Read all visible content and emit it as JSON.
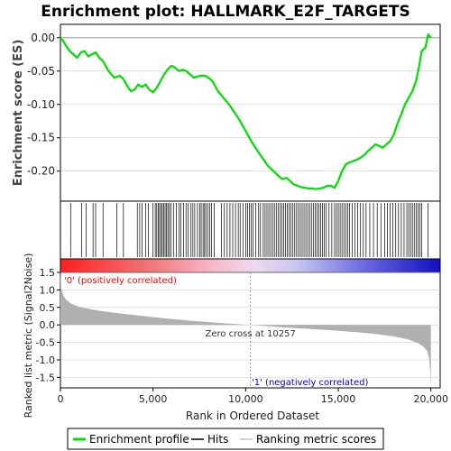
{
  "chart_data": {
    "type": "line",
    "title": "Enrichment plot: HALLMARK_E2F_TARGETS",
    "colors": {
      "es_line": "#00dd00",
      "hits": "#000000",
      "metric_fill": "#b0b0b0",
      "pos_label": "#ff0000",
      "neg_label": "#0000dd",
      "axis": "#000000",
      "grid": "#cccccc"
    },
    "es_panel": {
      "ylabel": "Enrichment score (ES)",
      "ylim": [
        -0.245,
        0.02
      ],
      "yticks": [
        {
          "v": 0.0,
          "label": "0.00"
        },
        {
          "v": -0.05,
          "label": "-0.05"
        },
        {
          "v": -0.1,
          "label": "-0.10"
        },
        {
          "v": -0.15,
          "label": "-0.15"
        },
        {
          "v": -0.2,
          "label": "-0.20"
        }
      ],
      "series": [
        {
          "name": "Enrichment profile",
          "x": [
            0,
            150,
            300,
            500,
            700,
            900,
            1100,
            1300,
            1500,
            1700,
            1900,
            2100,
            2300,
            2600,
            2900,
            3200,
            3400,
            3600,
            3800,
            4000,
            4200,
            4400,
            4600,
            4800,
            5000,
            5200,
            5400,
            5600,
            5800,
            6000,
            6200,
            6400,
            6600,
            6800,
            7000,
            7200,
            7400,
            7600,
            7800,
            8000,
            8200,
            8500,
            8800,
            9100,
            9400,
            9700,
            10000,
            10300,
            10600,
            10900,
            11200,
            11500,
            11800,
            12000,
            12200,
            12400,
            12600,
            12800,
            13000,
            13200,
            13400,
            13600,
            13800,
            14000,
            14200,
            14400,
            14600,
            14800,
            15000,
            15200,
            15400,
            15600,
            15800,
            16000,
            16200,
            16400,
            16600,
            16800,
            17000,
            17200,
            17400,
            17600,
            17800,
            18000,
            18200,
            18400,
            18600,
            18800,
            19000,
            19200,
            19350,
            19500,
            19700,
            19850,
            20000
          ],
          "y": [
            0.0,
            -0.005,
            -0.012,
            -0.02,
            -0.025,
            -0.03,
            -0.022,
            -0.02,
            -0.028,
            -0.025,
            -0.022,
            -0.03,
            -0.035,
            -0.05,
            -0.06,
            -0.057,
            -0.062,
            -0.072,
            -0.08,
            -0.078,
            -0.07,
            -0.074,
            -0.07,
            -0.078,
            -0.082,
            -0.075,
            -0.065,
            -0.055,
            -0.047,
            -0.042,
            -0.045,
            -0.05,
            -0.048,
            -0.05,
            -0.055,
            -0.06,
            -0.058,
            -0.057,
            -0.057,
            -0.06,
            -0.065,
            -0.08,
            -0.09,
            -0.1,
            -0.112,
            -0.125,
            -0.14,
            -0.155,
            -0.168,
            -0.18,
            -0.192,
            -0.2,
            -0.208,
            -0.212,
            -0.21,
            -0.215,
            -0.22,
            -0.222,
            -0.224,
            -0.225,
            -0.226,
            -0.226,
            -0.227,
            -0.226,
            -0.225,
            -0.222,
            -0.222,
            -0.225,
            -0.215,
            -0.2,
            -0.19,
            -0.187,
            -0.185,
            -0.183,
            -0.18,
            -0.176,
            -0.17,
            -0.165,
            -0.16,
            -0.162,
            -0.165,
            -0.16,
            -0.155,
            -0.145,
            -0.128,
            -0.115,
            -0.1,
            -0.09,
            -0.08,
            -0.065,
            -0.045,
            -0.02,
            -0.015,
            0.005,
            0.0
          ]
        }
      ]
    },
    "hits": [
      550,
      1150,
      1380,
      1760,
      1900,
      2300,
      3050,
      3400,
      4150,
      4280,
      4400,
      4600,
      4750,
      5000,
      5120,
      5200,
      5280,
      5350,
      5430,
      5500,
      5580,
      5650,
      5720,
      5800,
      5880,
      5960,
      6100,
      6250,
      6400,
      6500,
      6650,
      6780,
      6900,
      7050,
      7150,
      7250,
      7400,
      7520,
      7600,
      7700,
      7780,
      7850,
      7950,
      8050,
      8150,
      8300,
      8700,
      8850,
      9000,
      9150,
      9300,
      9450,
      9600,
      9700,
      9850,
      10000,
      10100,
      10200,
      10300,
      10400,
      10550,
      10700,
      10800,
      10950,
      11050,
      11150,
      11250,
      11350,
      11450,
      11550,
      11650,
      11750,
      11850,
      11950,
      12050,
      12150,
      12250,
      12350,
      12450,
      12550,
      12650,
      12750,
      12850,
      12950,
      13050,
      13150,
      13250,
      13350,
      13450,
      13550,
      13650,
      13750,
      13850,
      13950,
      14050,
      14150,
      14250,
      14350,
      14500,
      14650,
      14800,
      14900,
      15000,
      15100,
      15200,
      15300,
      15400,
      15500,
      15600,
      15750,
      15900,
      16050,
      16200,
      16350,
      16500,
      16700,
      16900,
      17100,
      17300,
      17500,
      17650,
      17800,
      17950,
      18100,
      18250,
      18400,
      18550,
      18700,
      18800,
      18900,
      19000,
      19100,
      19200,
      19300,
      19400,
      19500,
      19850
    ],
    "metric_panel": {
      "ylabel": "Ranked list metric (Signal2Noise)",
      "ylim": [
        -1.8,
        1.5
      ],
      "yticks": [
        {
          "v": 1.5,
          "label": "1.5"
        },
        {
          "v": 1.0,
          "label": "1.0"
        },
        {
          "v": 0.5,
          "label": "0.5"
        },
        {
          "v": 0.0,
          "label": "0.0"
        },
        {
          "v": -0.5,
          "label": "-0.5"
        },
        {
          "v": -1.0,
          "label": "-1.0"
        },
        {
          "v": -1.5,
          "label": "-1.5"
        }
      ],
      "profile": {
        "x": [
          0,
          50,
          150,
          300,
          600,
          1000,
          1500,
          2000,
          3000,
          4000,
          5000,
          6000,
          7000,
          8000,
          9000,
          10257,
          11000,
          12000,
          13000,
          14000,
          15000,
          16000,
          17000,
          18000,
          18800,
          19300,
          19600,
          19800,
          19900,
          19960,
          20000
        ],
        "y": [
          1.55,
          1.05,
          0.85,
          0.72,
          0.6,
          0.52,
          0.46,
          0.41,
          0.34,
          0.28,
          0.22,
          0.17,
          0.12,
          0.08,
          0.04,
          0.0,
          -0.03,
          -0.07,
          -0.1,
          -0.13,
          -0.17,
          -0.21,
          -0.26,
          -0.33,
          -0.42,
          -0.52,
          -0.62,
          -0.75,
          -0.95,
          -1.3,
          -1.75
        ]
      },
      "zero_cross_label": "Zero cross at 10257",
      "zero_cross": 10257,
      "pos_label": "'0' (positively correlated)",
      "neg_label": "'1' (negatively correlated)"
    },
    "xaxis": {
      "xlabel": "Rank in Ordered Dataset",
      "xlim": [
        0,
        20500
      ],
      "ticks": [
        {
          "v": 0,
          "label": "0"
        },
        {
          "v": 5000,
          "label": "5,000"
        },
        {
          "v": 10000,
          "label": "10,000"
        },
        {
          "v": 15000,
          "label": "15,000"
        },
        {
          "v": 20000,
          "label": "20,000"
        }
      ]
    },
    "legend": {
      "placement": "bottom",
      "items": [
        {
          "label": "Enrichment profile",
          "color": "#00dd00",
          "kind": "line"
        },
        {
          "label": "Hits",
          "color": "#000000",
          "kind": "line"
        },
        {
          "label": "Ranking metric scores",
          "color": "#c0c0c0",
          "kind": "line"
        }
      ]
    }
  }
}
